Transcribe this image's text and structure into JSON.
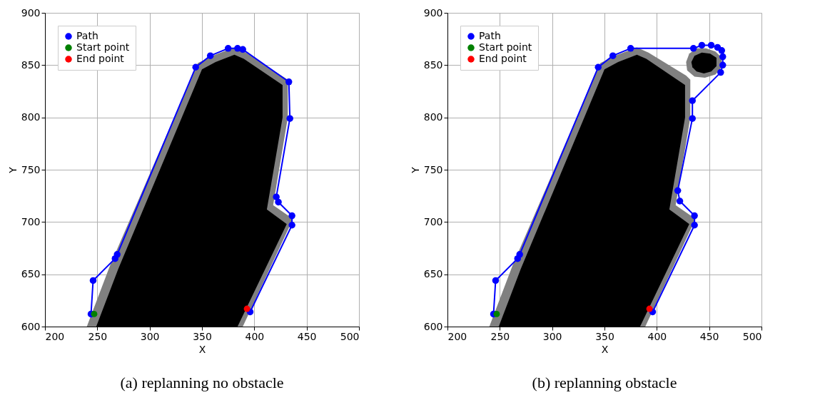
{
  "chart_data": [
    {
      "type": "line",
      "title": "(a) replanning no obstacle",
      "xlabel": "X",
      "ylabel": "Y",
      "xlim": [
        200,
        500
      ],
      "ylim": [
        600,
        900
      ],
      "xticks": [
        200,
        250,
        300,
        350,
        400,
        450,
        500
      ],
      "yticks": [
        600,
        650,
        700,
        750,
        800,
        850,
        900
      ],
      "grid": true,
      "legend": "top left",
      "line_style": "solid",
      "series": [
        {
          "type": "area",
          "color": "#808080",
          "x": [
            240,
            262,
            346,
            360,
            381,
            392,
            432,
            432,
            418,
            437,
            389
          ],
          "values": [
            600,
            658,
            852,
            859,
            867,
            862,
            836,
            800,
            716,
            703,
            600
          ]
        },
        {
          "type": "area",
          "color": "#000000",
          "x": [
            249,
            270,
            350,
            363,
            381,
            390,
            427,
            427,
            412,
            431,
            384
          ],
          "values": [
            600,
            655,
            846,
            853,
            860,
            856,
            831,
            800,
            712,
            698,
            600
          ]
        },
        {
          "name": "Path",
          "marker": "circle",
          "color": "#0000ff",
          "x": [
            244,
            246,
            267,
            269,
            344,
            358,
            375,
            384,
            389,
            433,
            434,
            421,
            423,
            436,
            436,
            396
          ],
          "values": [
            612,
            644,
            665,
            669,
            848,
            859,
            866,
            866,
            865,
            834,
            799,
            724,
            719,
            706,
            697,
            614
          ]
        },
        {
          "type": "scatter",
          "name": "Start point",
          "color": "#008000",
          "x": [
            247
          ],
          "values": [
            612
          ]
        },
        {
          "type": "scatter",
          "name": "End point",
          "color": "#ff0000",
          "x": [
            393
          ],
          "values": [
            617
          ]
        }
      ]
    },
    {
      "type": "line",
      "title": "(b) replanning obstacle",
      "xlabel": "X",
      "ylabel": "Y",
      "xlim": [
        200,
        500
      ],
      "ylim": [
        600,
        900
      ],
      "xticks": [
        200,
        250,
        300,
        350,
        400,
        450,
        500
      ],
      "yticks": [
        600,
        650,
        700,
        750,
        800,
        850,
        900
      ],
      "grid": true,
      "legend": "top left",
      "line_style": "solid",
      "series": [
        {
          "type": "area",
          "color": "#808080",
          "x": [
            240,
            262,
            346,
            360,
            381,
            392,
            428,
            432,
            432,
            418,
            437,
            389
          ],
          "values": [
            600,
            658,
            852,
            859,
            867,
            862,
            840,
            836,
            800,
            716,
            703,
            600
          ]
        },
        {
          "type": "area",
          "color": "#000000",
          "x": [
            249,
            270,
            350,
            363,
            381,
            390,
            427,
            427,
            412,
            431,
            384
          ],
          "values": [
            600,
            655,
            846,
            853,
            860,
            856,
            831,
            800,
            712,
            698,
            600
          ]
        },
        {
          "type": "area",
          "color": "#808080",
          "x": [
            428,
            431,
            438,
            447,
            456,
            462,
            462,
            456,
            446,
            436,
            429
          ],
          "values": [
            853,
            861,
            866,
            866,
            863,
            857,
            848,
            841,
            838,
            839,
            845
          ]
        },
        {
          "type": "area",
          "color": "#000000",
          "x": [
            433,
            436,
            443,
            451,
            457,
            457,
            452,
            445,
            438,
            434
          ],
          "values": [
            853,
            859,
            862,
            861,
            857,
            849,
            844,
            842,
            844,
            848
          ]
        },
        {
          "name": "Path",
          "marker": "circle",
          "color": "#0000ff",
          "x": [
            244,
            246,
            267,
            269,
            344,
            358,
            375,
            435,
            443,
            452,
            458,
            462,
            463,
            463,
            461,
            434,
            434,
            420,
            422,
            436,
            436,
            396
          ],
          "values": [
            612,
            644,
            665,
            669,
            848,
            859,
            866,
            866,
            869,
            869,
            867,
            864,
            858,
            850,
            843,
            816,
            799,
            730,
            720,
            706,
            697,
            614
          ]
        },
        {
          "type": "scatter",
          "name": "Start point",
          "color": "#008000",
          "x": [
            247
          ],
          "values": [
            612
          ]
        },
        {
          "type": "scatter",
          "name": "End point",
          "color": "#ff0000",
          "x": [
            393
          ],
          "values": [
            617
          ]
        }
      ]
    }
  ]
}
